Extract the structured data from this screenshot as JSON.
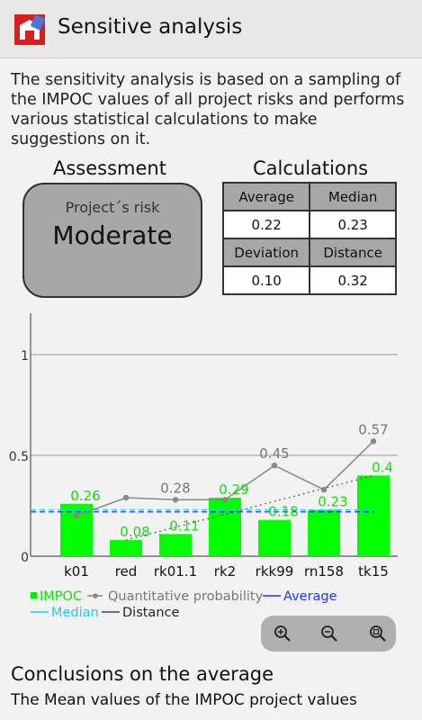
{
  "app": {
    "title": "Sensitive analysis",
    "logo_icon": "app-logo-icon"
  },
  "intro": "The sensitivity analysis is based on a sampling of the IMPOC values of all project risks and performs various statistical calculations to make suggestions on it.",
  "assessment": {
    "title": "Assessment",
    "label": "Project´s risk",
    "value": "Moderate"
  },
  "calculations": {
    "title": "Calculations",
    "headers": [
      "Average",
      "Median",
      "Deviation",
      "Distance"
    ],
    "values": [
      "0.22",
      "0.23",
      "0.10",
      "0.32"
    ]
  },
  "chart_data": {
    "type": "bar",
    "categories": [
      "k01",
      "red",
      "rk01.1",
      "rk2",
      "rkk99",
      "rn158",
      "tk15"
    ],
    "series": [
      {
        "name": "IMPOC",
        "type": "bar",
        "color": "#00ff00",
        "values": [
          0.26,
          0.08,
          0.11,
          0.29,
          0.18,
          0.23,
          0.4
        ]
      },
      {
        "name": "Quantitative probability",
        "type": "line",
        "color": "#888888",
        "values": [
          0.2,
          0.29,
          0.28,
          0.28,
          0.45,
          0.33,
          0.57
        ],
        "labels": [
          "",
          "",
          "0.28",
          "",
          "0.45",
          "",
          "0.57"
        ]
      }
    ],
    "average": 0.22,
    "median": 0.23,
    "distance_line": {
      "from": 0.08,
      "to": 0.4
    },
    "yticks": [
      "0",
      "0.5",
      "1"
    ],
    "ylim": [
      0,
      1.2
    ],
    "legend": [
      {
        "name": "IMPOC",
        "color": "#00ee00"
      },
      {
        "name": "Quantitative probability",
        "color": "#888888"
      },
      {
        "name": "Average",
        "color": "#2233ff"
      },
      {
        "name": "Median",
        "color": "#22ccee"
      },
      {
        "name": "Distance",
        "color": "#222222"
      }
    ],
    "legend_placement": "bottom",
    "grid": true
  },
  "zoom": {
    "icons": [
      "zoom-in-icon",
      "zoom-out-icon",
      "zoom-reset-icon"
    ]
  },
  "conclusion": {
    "title": "Conclusions on the average",
    "text": "The Mean values of the IMPOC project values"
  }
}
